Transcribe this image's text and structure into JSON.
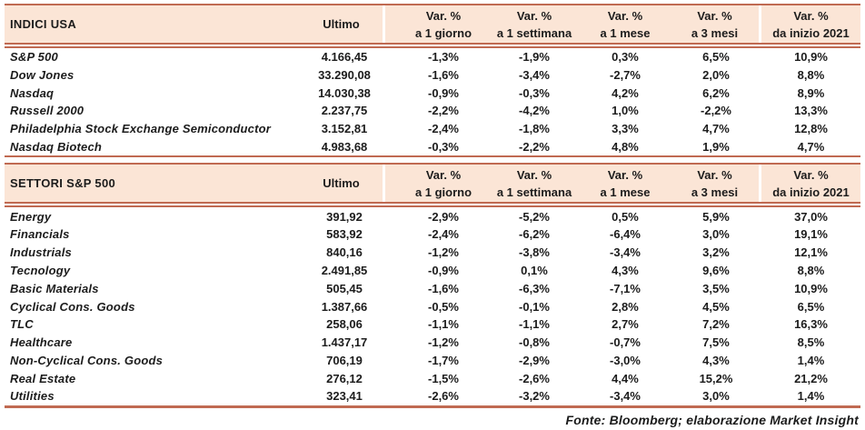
{
  "colors": {
    "header_bg": "#fbe5d6",
    "rule": "#c06a52",
    "text": "#1c1c1c"
  },
  "columns": {
    "ultimo": "Ultimo",
    "variations": [
      {
        "line1": "Var. %",
        "line2": "a 1 giorno"
      },
      {
        "line1": "Var. %",
        "line2": "a 1 settimana"
      },
      {
        "line1": "Var. %",
        "line2": "a 1 mese"
      },
      {
        "line1": "Var. %",
        "line2": "a 3 mesi"
      },
      {
        "line1": "Var. %",
        "line2": "da inizio 2021"
      }
    ]
  },
  "tables": [
    {
      "title": "INDICI USA",
      "rows": [
        {
          "label": "S&P 500",
          "values": [
            "4.166,45",
            "-1,3%",
            "-1,9%",
            "0,3%",
            "6,5%",
            "10,9%"
          ]
        },
        {
          "label": "Dow Jones",
          "values": [
            "33.290,08",
            "-1,6%",
            "-3,4%",
            "-2,7%",
            "2,0%",
            "8,8%"
          ]
        },
        {
          "label": "Nasdaq",
          "values": [
            "14.030,38",
            "-0,9%",
            "-0,3%",
            "4,2%",
            "6,2%",
            "8,9%"
          ]
        },
        {
          "label": "Russell 2000",
          "values": [
            "2.237,75",
            "-2,2%",
            "-4,2%",
            "1,0%",
            "-2,2%",
            "13,3%"
          ]
        },
        {
          "label": "Philadelphia Stock Exchange Semiconductor",
          "values": [
            "3.152,81",
            "-2,4%",
            "-1,8%",
            "3,3%",
            "4,7%",
            "12,8%"
          ]
        },
        {
          "label": "Nasdaq Biotech",
          "values": [
            "4.983,68",
            "-0,3%",
            "-2,2%",
            "4,8%",
            "1,9%",
            "4,7%"
          ]
        }
      ]
    },
    {
      "title": "SETTORI S&P 500",
      "rows": [
        {
          "label": "Energy",
          "values": [
            "391,92",
            "-2,9%",
            "-5,2%",
            "0,5%",
            "5,9%",
            "37,0%"
          ]
        },
        {
          "label": "Financials",
          "values": [
            "583,92",
            "-2,4%",
            "-6,2%",
            "-6,4%",
            "3,0%",
            "19,1%"
          ]
        },
        {
          "label": "Industrials",
          "values": [
            "840,16",
            "-1,2%",
            "-3,8%",
            "-3,4%",
            "3,2%",
            "12,1%"
          ]
        },
        {
          "label": "Tecnology",
          "values": [
            "2.491,85",
            "-0,9%",
            "0,1%",
            "4,3%",
            "9,6%",
            "8,8%"
          ]
        },
        {
          "label": "Basic Materials",
          "values": [
            "505,45",
            "-1,6%",
            "-6,3%",
            "-7,1%",
            "3,5%",
            "10,9%"
          ]
        },
        {
          "label": "Cyclical Cons. Goods",
          "values": [
            "1.387,66",
            "-0,5%",
            "-0,1%",
            "2,8%",
            "4,5%",
            "6,5%"
          ]
        },
        {
          "label": "TLC",
          "values": [
            "258,06",
            "-1,1%",
            "-1,1%",
            "2,7%",
            "7,2%",
            "16,3%"
          ]
        },
        {
          "label": "Healthcare",
          "values": [
            "1.437,17",
            "-1,2%",
            "-0,8%",
            "-0,7%",
            "7,5%",
            "8,5%"
          ]
        },
        {
          "label": "Non-Cyclical Cons. Goods",
          "values": [
            "706,19",
            "-1,7%",
            "-2,9%",
            "-3,0%",
            "4,3%",
            "1,4%"
          ]
        },
        {
          "label": "Real Estate",
          "values": [
            "276,12",
            "-1,5%",
            "-2,6%",
            "4,4%",
            "15,2%",
            "21,2%"
          ]
        },
        {
          "label": "Utilities",
          "values": [
            "323,41",
            "-2,6%",
            "-3,2%",
            "-3,4%",
            "3,0%",
            "1,4%"
          ]
        }
      ]
    }
  ],
  "footer": "Fonte: Bloomberg; elaborazione Market Insight",
  "chart_data": {
    "type": "table",
    "tables": [
      {
        "title": "INDICI USA",
        "columns": [
          "Ultimo",
          "Var. % a 1 giorno",
          "Var. % a 1 settimana",
          "Var. % a 1 mese",
          "Var. % a 3 mesi",
          "Var. % da inizio 2021"
        ],
        "rows": {
          "S&P 500": [
            "4.166,45",
            "-1,3%",
            "-1,9%",
            "0,3%",
            "6,5%",
            "10,9%"
          ],
          "Dow Jones": [
            "33.290,08",
            "-1,6%",
            "-3,4%",
            "-2,7%",
            "2,0%",
            "8,8%"
          ],
          "Nasdaq": [
            "14.030,38",
            "-0,9%",
            "-0,3%",
            "4,2%",
            "6,2%",
            "8,9%"
          ],
          "Russell 2000": [
            "2.237,75",
            "-2,2%",
            "-4,2%",
            "1,0%",
            "-2,2%",
            "13,3%"
          ],
          "Philadelphia Stock Exchange Semiconductor": [
            "3.152,81",
            "-2,4%",
            "-1,8%",
            "3,3%",
            "4,7%",
            "12,8%"
          ],
          "Nasdaq Biotech": [
            "4.983,68",
            "-0,3%",
            "-2,2%",
            "4,8%",
            "1,9%",
            "4,7%"
          ]
        }
      },
      {
        "title": "SETTORI S&P 500",
        "columns": [
          "Ultimo",
          "Var. % a 1 giorno",
          "Var. % a 1 settimana",
          "Var. % a 1 mese",
          "Var. % a 3 mesi",
          "Var. % da inizio 2021"
        ],
        "rows": {
          "Energy": [
            "391,92",
            "-2,9%",
            "-5,2%",
            "0,5%",
            "5,9%",
            "37,0%"
          ],
          "Financials": [
            "583,92",
            "-2,4%",
            "-6,2%",
            "-6,4%",
            "3,0%",
            "19,1%"
          ],
          "Industrials": [
            "840,16",
            "-1,2%",
            "-3,8%",
            "-3,4%",
            "3,2%",
            "12,1%"
          ],
          "Tecnology": [
            "2.491,85",
            "-0,9%",
            "0,1%",
            "4,3%",
            "9,6%",
            "8,8%"
          ],
          "Basic Materials": [
            "505,45",
            "-1,6%",
            "-6,3%",
            "-7,1%",
            "3,5%",
            "10,9%"
          ],
          "Cyclical Cons. Goods": [
            "1.387,66",
            "-0,5%",
            "-0,1%",
            "2,8%",
            "4,5%",
            "6,5%"
          ],
          "TLC": [
            "258,06",
            "-1,1%",
            "-1,1%",
            "2,7%",
            "7,2%",
            "16,3%"
          ],
          "Healthcare": [
            "1.437,17",
            "-1,2%",
            "-0,8%",
            "-0,7%",
            "7,5%",
            "8,5%"
          ],
          "Non-Cyclical Cons. Goods": [
            "706,19",
            "-1,7%",
            "-2,9%",
            "-3,0%",
            "4,3%",
            "1,4%"
          ],
          "Real Estate": [
            "276,12",
            "-1,5%",
            "-2,6%",
            "4,4%",
            "15,2%",
            "21,2%"
          ],
          "Utilities": [
            "323,41",
            "-2,6%",
            "-3,2%",
            "-3,4%",
            "3,0%",
            "1,4%"
          ]
        }
      }
    ]
  }
}
